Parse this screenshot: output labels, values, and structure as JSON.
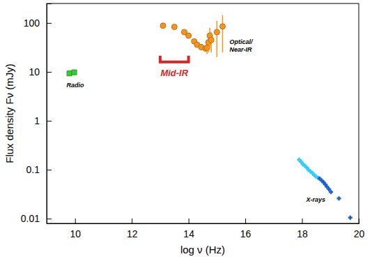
{
  "chart_data": {
    "type": "scatter",
    "x_label": "log ν (Hz)",
    "y_label": "Flux density Fν (mJy)",
    "log": "y",
    "grid": false,
    "xlim": [
      9,
      20
    ],
    "ylim": [
      0.008,
      250
    ],
    "xticks": [
      10,
      12,
      14,
      16,
      18,
      20
    ],
    "yticks": [
      0.01,
      0.1,
      1,
      10,
      100
    ],
    "series": [
      {
        "name": "Radio",
        "color": "#33cc33",
        "marker": "square",
        "x": [
          9.8,
          9.97
        ],
        "values": [
          9.3,
          9.8
        ],
        "errors": [
          0.8,
          1.2
        ]
      },
      {
        "name": "Optical/\nNear-IR",
        "color": "#f7941d",
        "marker": "circle",
        "x": [
          13.1,
          13.5,
          13.85,
          14.0,
          14.2,
          14.3,
          14.45,
          14.6,
          14.65,
          14.7,
          14.75,
          14.8,
          15.0,
          15.2
        ],
        "values": [
          88,
          83,
          65,
          55,
          42,
          36,
          32,
          30,
          31,
          40,
          55,
          45,
          65,
          85
        ],
        "errors": [
          4,
          4,
          3,
          3,
          2,
          2,
          2,
          2,
          8,
          15,
          25,
          20,
          45,
          60
        ]
      },
      {
        "name": "Mid-IR",
        "type": "bracket",
        "color": "#d62728",
        "x": [
          13,
          14
        ],
        "values": [
          16,
          16
        ]
      },
      {
        "name": "X-rays",
        "marker": "plus",
        "colors": [
          "#33ccff",
          "#33ccff",
          "#33ccff",
          "#33ccff",
          "#33ccff",
          "#33ccff",
          "#33ccff",
          "#33ccff",
          "#33ccff",
          "#33ccff",
          "#33ccff",
          "#1a5fd0",
          "#1a5fd0",
          "#1a5fd0",
          "#1a5fd0",
          "#1a5fd0",
          "#1a5fd0",
          "#1a5fd0",
          "#1a5fd0",
          "#1a5fd0"
        ],
        "x": [
          17.9,
          17.97,
          18.03,
          18.1,
          18.17,
          18.23,
          18.3,
          18.37,
          18.43,
          18.5,
          18.57,
          18.62,
          18.7,
          18.76,
          18.82,
          18.88,
          18.95,
          19.02,
          19.3,
          19.7
        ],
        "values": [
          0.16,
          0.145,
          0.13,
          0.12,
          0.11,
          0.1,
          0.092,
          0.085,
          0.078,
          0.072,
          0.068,
          0.066,
          0.06,
          0.055,
          0.05,
          0.045,
          0.04,
          0.035,
          0.026,
          0.0105
        ]
      }
    ]
  }
}
